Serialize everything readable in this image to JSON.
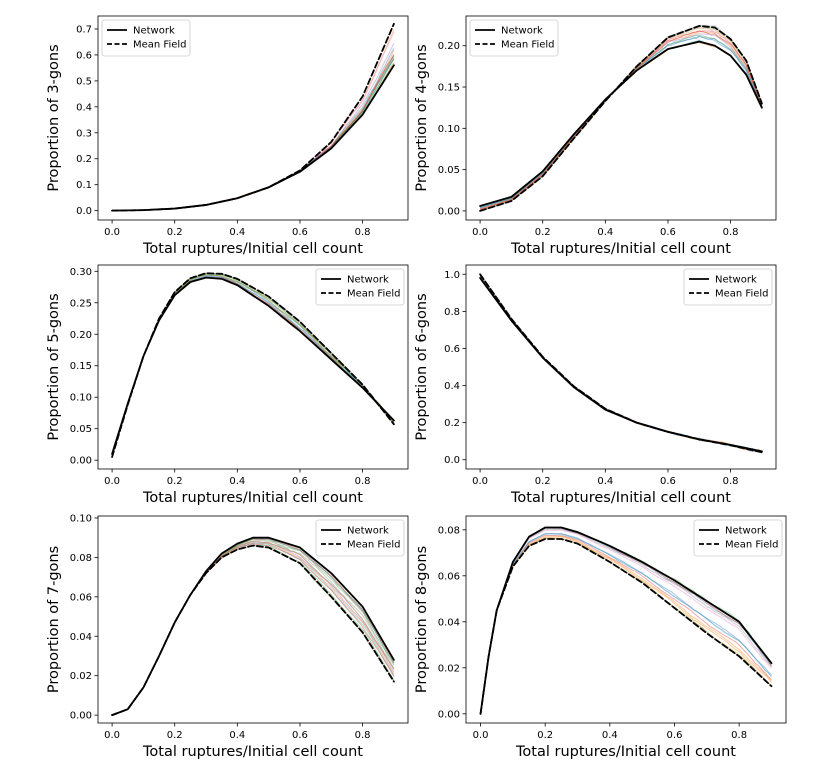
{
  "figure": {
    "legend_labels": [
      "Network",
      "Mean Field"
    ],
    "trial_colors": [
      "#1f77b4",
      "#ff7f0e",
      "#2ca02c",
      "#d62728",
      "#9467bd",
      "#8c564b",
      "#e377c2",
      "#7f7f7f",
      "#bcbd22",
      "#17becf"
    ]
  },
  "chart_data": [
    {
      "type": "line",
      "id": "p3",
      "xlabel": "Total ruptures/Initial cell count",
      "ylabel": "Proportion of 3-gons",
      "xlim": [
        -0.045,
        0.945
      ],
      "ylim": [
        -0.036,
        0.75
      ],
      "xticks": [
        0.0,
        0.2,
        0.4,
        0.6,
        0.8
      ],
      "yticks": [
        0.0,
        0.1,
        0.2,
        0.3,
        0.4,
        0.5,
        0.6,
        0.7
      ],
      "xtick_labels": [
        "0.0",
        "0.2",
        "0.4",
        "0.6",
        "0.8"
      ],
      "ytick_labels": [
        "0.0",
        "0.1",
        "0.2",
        "0.3",
        "0.4",
        "0.5",
        "0.6",
        "0.7"
      ],
      "legend_position": "top-left",
      "grid": false,
      "series": [
        {
          "name": "Network",
          "style": "solid",
          "color": "#000000",
          "x": [
            0.0,
            0.1,
            0.2,
            0.3,
            0.4,
            0.5,
            0.6,
            0.7,
            0.8,
            0.9
          ],
          "y": [
            0.0,
            0.002,
            0.008,
            0.022,
            0.048,
            0.09,
            0.15,
            0.24,
            0.37,
            0.56
          ]
        },
        {
          "name": "Mean Field",
          "style": "dashed",
          "color": "#000000",
          "x": [
            0.0,
            0.1,
            0.2,
            0.3,
            0.4,
            0.5,
            0.6,
            0.7,
            0.8,
            0.9
          ],
          "y": [
            0.0,
            0.002,
            0.008,
            0.022,
            0.048,
            0.09,
            0.155,
            0.265,
            0.44,
            0.72
          ]
        }
      ]
    },
    {
      "type": "line",
      "id": "p4",
      "xlabel": "Total ruptures/Initial cell count",
      "ylabel": "Proportion of 4-gons",
      "xlim": [
        -0.045,
        0.945
      ],
      "ylim": [
        -0.011,
        0.236
      ],
      "xticks": [
        0.0,
        0.2,
        0.4,
        0.6,
        0.8
      ],
      "yticks": [
        0.0,
        0.05,
        0.1,
        0.15,
        0.2
      ],
      "xtick_labels": [
        "0.0",
        "0.2",
        "0.4",
        "0.6",
        "0.8"
      ],
      "ytick_labels": [
        "0.00",
        "0.05",
        "0.10",
        "0.15",
        "0.20"
      ],
      "legend_position": "top-left",
      "grid": false,
      "series": [
        {
          "name": "Network",
          "style": "solid",
          "color": "#000000",
          "x": [
            0.0,
            0.1,
            0.2,
            0.3,
            0.4,
            0.5,
            0.6,
            0.7,
            0.75,
            0.8,
            0.85,
            0.9
          ],
          "y": [
            0.006,
            0.017,
            0.048,
            0.093,
            0.135,
            0.17,
            0.196,
            0.205,
            0.2,
            0.188,
            0.165,
            0.125
          ]
        },
        {
          "name": "Mean Field",
          "style": "dashed",
          "color": "#000000",
          "x": [
            0.0,
            0.1,
            0.2,
            0.3,
            0.4,
            0.5,
            0.6,
            0.7,
            0.75,
            0.8,
            0.85,
            0.9
          ],
          "y": [
            0.0,
            0.012,
            0.042,
            0.088,
            0.133,
            0.175,
            0.21,
            0.224,
            0.222,
            0.208,
            0.182,
            0.13
          ]
        }
      ]
    },
    {
      "type": "line",
      "id": "p5",
      "xlabel": "Total ruptures/Initial cell count",
      "ylabel": "Proportion of 5-gons",
      "xlim": [
        -0.045,
        0.945
      ],
      "ylim": [
        -0.014,
        0.31
      ],
      "xticks": [
        0.0,
        0.2,
        0.4,
        0.6,
        0.8
      ],
      "yticks": [
        0.0,
        0.05,
        0.1,
        0.15,
        0.2,
        0.25,
        0.3
      ],
      "xtick_labels": [
        "0.0",
        "0.2",
        "0.4",
        "0.6",
        "0.8"
      ],
      "ytick_labels": [
        "0.00",
        "0.05",
        "0.10",
        "0.15",
        "0.20",
        "0.25",
        "0.30"
      ],
      "legend_position": "top-right",
      "grid": false,
      "series": [
        {
          "name": "Network",
          "style": "solid",
          "color": "#000000",
          "x": [
            0.0,
            0.05,
            0.1,
            0.15,
            0.2,
            0.25,
            0.3,
            0.35,
            0.4,
            0.5,
            0.6,
            0.7,
            0.8,
            0.9
          ],
          "y": [
            0.01,
            0.09,
            0.165,
            0.222,
            0.262,
            0.283,
            0.29,
            0.288,
            0.278,
            0.245,
            0.205,
            0.16,
            0.115,
            0.063
          ]
        },
        {
          "name": "Mean Field",
          "style": "dashed",
          "color": "#000000",
          "x": [
            0.0,
            0.05,
            0.1,
            0.15,
            0.2,
            0.25,
            0.3,
            0.35,
            0.4,
            0.5,
            0.6,
            0.7,
            0.8,
            0.9
          ],
          "y": [
            0.005,
            0.088,
            0.165,
            0.225,
            0.267,
            0.289,
            0.297,
            0.296,
            0.288,
            0.26,
            0.22,
            0.17,
            0.12,
            0.057
          ]
        }
      ]
    },
    {
      "type": "line",
      "id": "p6",
      "xlabel": "Total ruptures/Initial cell count",
      "ylabel": "Proportion of 6-gons",
      "xlim": [
        -0.045,
        0.945
      ],
      "ylim": [
        -0.05,
        1.05
      ],
      "xticks": [
        0.0,
        0.2,
        0.4,
        0.6,
        0.8
      ],
      "yticks": [
        0.0,
        0.2,
        0.4,
        0.6,
        0.8,
        1.0
      ],
      "xtick_labels": [
        "0.0",
        "0.2",
        "0.4",
        "0.6",
        "0.8"
      ],
      "ytick_labels": [
        "0.0",
        "0.2",
        "0.4",
        "0.6",
        "0.8",
        "1.0"
      ],
      "legend_position": "top-right",
      "grid": false,
      "series": [
        {
          "name": "Network",
          "style": "solid",
          "color": "#000000",
          "x": [
            0.0,
            0.1,
            0.2,
            0.3,
            0.4,
            0.5,
            0.6,
            0.7,
            0.8,
            0.9
          ],
          "y": [
            0.98,
            0.75,
            0.55,
            0.39,
            0.27,
            0.2,
            0.15,
            0.11,
            0.08,
            0.045
          ]
        },
        {
          "name": "Mean Field",
          "style": "dashed",
          "color": "#000000",
          "x": [
            0.0,
            0.1,
            0.2,
            0.3,
            0.4,
            0.5,
            0.6,
            0.7,
            0.8,
            0.9
          ],
          "y": [
            1.0,
            0.76,
            0.555,
            0.395,
            0.275,
            0.2,
            0.15,
            0.11,
            0.078,
            0.04
          ]
        }
      ]
    },
    {
      "type": "line",
      "id": "p7",
      "xlabel": "Total ruptures/Initial cell count",
      "ylabel": "Proportion of 7-gons",
      "xlim": [
        -0.045,
        0.945
      ],
      "ylim": [
        -0.004,
        0.101
      ],
      "xticks": [
        0.0,
        0.2,
        0.4,
        0.6,
        0.8
      ],
      "yticks": [
        0.0,
        0.02,
        0.04,
        0.06,
        0.08,
        0.1
      ],
      "xtick_labels": [
        "0.0",
        "0.2",
        "0.4",
        "0.6",
        "0.8"
      ],
      "ytick_labels": [
        "0.00",
        "0.02",
        "0.04",
        "0.06",
        "0.08",
        "0.10"
      ],
      "legend_position": "top-right",
      "grid": false,
      "series": [
        {
          "name": "Network",
          "style": "solid",
          "color": "#000000",
          "x": [
            0.0,
            0.05,
            0.1,
            0.15,
            0.2,
            0.25,
            0.3,
            0.35,
            0.4,
            0.45,
            0.5,
            0.6,
            0.7,
            0.8,
            0.9
          ],
          "y": [
            0.0,
            0.003,
            0.014,
            0.03,
            0.047,
            0.061,
            0.073,
            0.082,
            0.087,
            0.09,
            0.09,
            0.085,
            0.072,
            0.055,
            0.028
          ]
        },
        {
          "name": "Mean Field",
          "style": "dashed",
          "color": "#000000",
          "x": [
            0.0,
            0.05,
            0.1,
            0.15,
            0.2,
            0.25,
            0.3,
            0.35,
            0.4,
            0.45,
            0.5,
            0.6,
            0.7,
            0.8,
            0.9
          ],
          "y": [
            0.0,
            0.003,
            0.014,
            0.03,
            0.047,
            0.061,
            0.072,
            0.08,
            0.084,
            0.086,
            0.085,
            0.077,
            0.06,
            0.042,
            0.017
          ]
        }
      ]
    },
    {
      "type": "line",
      "id": "p8",
      "xlabel": "Total ruptures/Initial cell count",
      "ylabel": "Proportion of 8-gons",
      "xlim": [
        -0.045,
        0.945
      ],
      "ylim": [
        -0.004,
        0.086
      ],
      "xticks": [
        0.0,
        0.2,
        0.4,
        0.6,
        0.8
      ],
      "yticks": [
        0.0,
        0.02,
        0.04,
        0.06,
        0.08
      ],
      "xtick_labels": [
        "0.0",
        "0.2",
        "0.4",
        "0.6",
        "0.8"
      ],
      "ytick_labels": [
        "0.00",
        "0.02",
        "0.04",
        "0.06",
        "0.08"
      ],
      "legend_position": "top-right",
      "grid": false,
      "series": [
        {
          "name": "Network",
          "style": "solid",
          "color": "#000000",
          "x": [
            0.0,
            0.025,
            0.05,
            0.1,
            0.15,
            0.2,
            0.25,
            0.3,
            0.4,
            0.5,
            0.6,
            0.7,
            0.8,
            0.9
          ],
          "y": [
            0.0,
            0.025,
            0.045,
            0.066,
            0.077,
            0.081,
            0.081,
            0.079,
            0.073,
            0.066,
            0.058,
            0.049,
            0.04,
            0.022
          ]
        },
        {
          "name": "Mean Field",
          "style": "dashed",
          "color": "#000000",
          "x": [
            0.0,
            0.025,
            0.05,
            0.1,
            0.15,
            0.2,
            0.25,
            0.3,
            0.4,
            0.5,
            0.6,
            0.7,
            0.8,
            0.9
          ],
          "y": [
            0.0,
            0.025,
            0.045,
            0.064,
            0.073,
            0.076,
            0.076,
            0.074,
            0.066,
            0.057,
            0.046,
            0.035,
            0.025,
            0.012
          ]
        }
      ]
    }
  ]
}
